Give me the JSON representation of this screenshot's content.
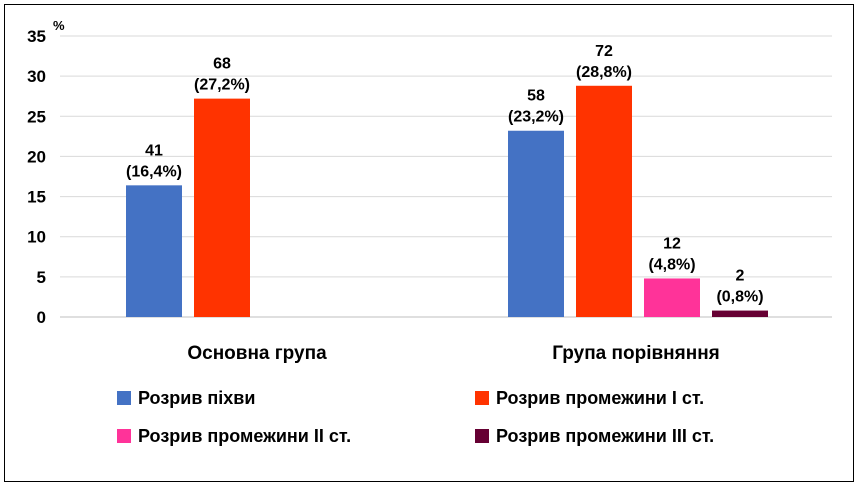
{
  "chart_data": {
    "type": "bar",
    "unit": "%",
    "ylim": [
      0,
      35
    ],
    "yticks": [
      "0",
      "5",
      "10",
      "15",
      "20",
      "25",
      "30",
      "35"
    ],
    "grid": true,
    "legend_position": "bottom",
    "categories": [
      "Основна група",
      "Група порівняння"
    ],
    "series": [
      {
        "name": "Розрив піхви",
        "color": "#4472C4",
        "values": [
          16.4,
          23.2
        ],
        "labels_count": [
          "41",
          "58"
        ],
        "labels_pct": [
          "(16,4%)",
          "(23,2%)"
        ]
      },
      {
        "name": "Розрив промежини І ст.",
        "color": "#FF3300",
        "values": [
          27.2,
          28.8
        ],
        "labels_count": [
          "68",
          "72"
        ],
        "labels_pct": [
          "(27,2%)",
          "(28,8%)"
        ]
      },
      {
        "name": "Розрив промежини ІІ ст.",
        "color": "#FF3399",
        "values": [
          null,
          4.8
        ],
        "labels_count": [
          null,
          "12"
        ],
        "labels_pct": [
          null,
          "(4,8%)"
        ]
      },
      {
        "name": "Розрив промежини ІІІ ст.",
        "color": "#660033",
        "values": [
          null,
          0.8
        ],
        "labels_count": [
          null,
          "2"
        ],
        "labels_pct": [
          null,
          "(0,8%)"
        ]
      }
    ]
  }
}
